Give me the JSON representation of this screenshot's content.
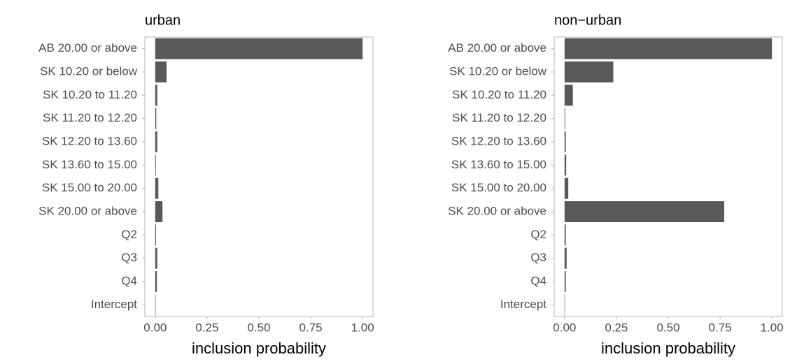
{
  "chart_data": [
    {
      "type": "bar",
      "orientation": "horizontal",
      "title": "urban",
      "xlabel": "inclusion probability",
      "color": "#595959",
      "categories": [
        "AB 20.00 or above",
        "SK 10.20 or below",
        "SK 10.20 to 11.20",
        "SK 11.20 to 12.20",
        "SK 12.20 to 13.60",
        "SK 13.60 to 15.00",
        "SK 15.00 to 20.00",
        "SK 20.00 or above",
        "Q2",
        "Q3",
        "Q4",
        "Intercept"
      ],
      "values": [
        1.0,
        0.055,
        0.01,
        0.005,
        0.01,
        0.003,
        0.015,
        0.035,
        0.004,
        0.01,
        0.008,
        0.002
      ],
      "xlim": [
        -0.05,
        1.05
      ],
      "xticks": [
        {
          "value": 0,
          "label": "0.00"
        },
        0.25,
        {
          "value": 0.5,
          "label": "0.50"
        },
        0.75,
        {
          "value": 1,
          "label": "1.00"
        }
      ]
    },
    {
      "type": "bar",
      "orientation": "horizontal",
      "title": "non−urban",
      "xlabel": "inclusion probability",
      "color": "#595959",
      "categories": [
        "AB 20.00 or above",
        "SK 10.20 or below",
        "SK 10.20 to 11.20",
        "SK 11.20 to 12.20",
        "SK 12.20 to 13.60",
        "SK 13.60 to 15.00",
        "SK 15.00 to 20.00",
        "SK 20.00 or above",
        "Q2",
        "Q3",
        "Q4",
        "Intercept"
      ],
      "values": [
        1.0,
        0.235,
        0.04,
        0.003,
        0.006,
        0.008,
        0.018,
        0.77,
        0.006,
        0.01,
        0.006,
        0.002
      ],
      "xlim": [
        -0.05,
        1.05
      ],
      "xticks": [
        {
          "value": 0,
          "label": "0.00"
        },
        0.25,
        {
          "value": 0.5,
          "label": "0.50"
        },
        0.75,
        {
          "value": 1,
          "label": "1.00"
        }
      ]
    }
  ]
}
